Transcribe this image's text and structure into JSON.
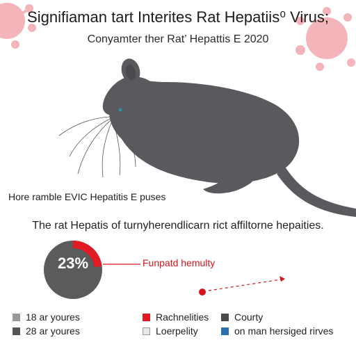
{
  "header": {
    "title": "Signifiaman tart Interites Rat Hepatiis⁰ Virus;",
    "subtitle": "Conyamter ther Rat’ Hepattis E 2020"
  },
  "illustration": {
    "caption": "Hore ramble EVIC Hepatitis E puses"
  },
  "description": "The rat Hepatis of turnyherendlicarn rict affiltorne hepaities.",
  "donut": {
    "percent_label": "23%",
    "fraction": 0.23,
    "callout_label": "Funpatd hemulty",
    "colors": {
      "ring": "#5b5b5e",
      "highlight": "#e01b22"
    }
  },
  "legend": [
    {
      "label": "18 ar youres",
      "color": "#9a9a9a"
    },
    {
      "label": "28 ar youres",
      "color": "#555555"
    },
    {
      "label": "Rachnelities",
      "color": "#e01b22"
    },
    {
      "label": "Loerpelity",
      "color": "#e8e8e8"
    },
    {
      "label": "Courty",
      "color": "#4a4a4a"
    },
    {
      "label": "on man hersiged rirves",
      "color": "#2a6fb0"
    }
  ],
  "colors": {
    "rat": "#5a5a5e",
    "virus": "#f2a9ae",
    "accent": "#d4161c"
  }
}
